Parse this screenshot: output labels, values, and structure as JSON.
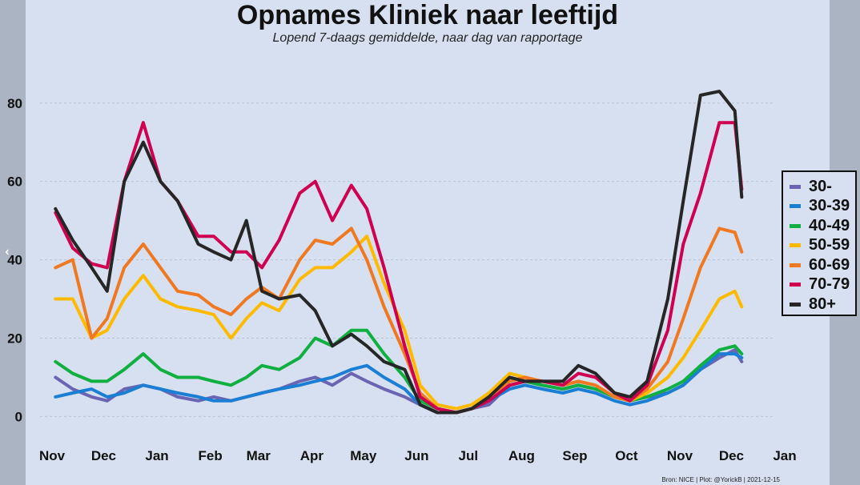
{
  "chart_data": {
    "type": "line",
    "title": "Opnames Kliniek naar leeftijd",
    "subtitle": "Lopend 7-daags gemiddelde, naar dag van rapportage",
    "source": "Bron: NICE | Plot: @YorickB  |  2021-12-15",
    "xlabel": "",
    "ylabel": "",
    "ylim": [
      -4,
      92
    ],
    "yticks": [
      0,
      20,
      40,
      60,
      80
    ],
    "xticks": [
      "Nov",
      "Dec",
      "Jan",
      "Feb",
      "Mar",
      "Apr",
      "May",
      "Jun",
      "Jul",
      "Aug",
      "Sep",
      "Oct",
      "Nov",
      "Dec",
      "Jan"
    ],
    "grid": true,
    "legend_position": "right",
    "x": [
      "2020-11-10",
      "2020-11-20",
      "2020-12-01",
      "2020-12-10",
      "2020-12-20",
      "2020-12-31",
      "2021-01-10",
      "2021-01-20",
      "2021-02-01",
      "2021-02-10",
      "2021-02-20",
      "2021-03-01",
      "2021-03-10",
      "2021-03-20",
      "2021-04-01",
      "2021-04-10",
      "2021-04-20",
      "2021-05-01",
      "2021-05-10",
      "2021-05-20",
      "2021-06-01",
      "2021-06-10",
      "2021-06-20",
      "2021-07-01",
      "2021-07-10",
      "2021-07-20",
      "2021-08-01",
      "2021-08-10",
      "2021-08-20",
      "2021-09-01",
      "2021-09-10",
      "2021-09-20",
      "2021-10-01",
      "2021-10-10",
      "2021-10-20",
      "2021-11-01",
      "2021-11-10",
      "2021-11-20",
      "2021-12-01",
      "2021-12-10",
      "2021-12-14"
    ],
    "series": [
      {
        "name": "30-",
        "color": "#6b64b3",
        "values": [
          10,
          7,
          5,
          4,
          7,
          8,
          7,
          5,
          4,
          5,
          4,
          5,
          6,
          7,
          9,
          10,
          8,
          11,
          9,
          7,
          5,
          3,
          1,
          1,
          2,
          3,
          8,
          9,
          8,
          7,
          8,
          7,
          5,
          4,
          5,
          6,
          8,
          12,
          15,
          17,
          14
        ]
      },
      {
        "name": "30-39",
        "color": "#1a7fd4",
        "values": [
          5,
          6,
          7,
          5,
          6,
          8,
          7,
          6,
          5,
          4,
          4,
          5,
          6,
          7,
          8,
          9,
          10,
          12,
          13,
          10,
          7,
          3,
          1,
          1,
          2,
          4,
          7,
          8,
          7,
          6,
          7,
          6,
          4,
          3,
          4,
          6,
          8,
          12,
          16,
          16,
          15
        ]
      },
      {
        "name": "40-49",
        "color": "#10b040",
        "values": [
          14,
          11,
          9,
          9,
          12,
          16,
          12,
          10,
          10,
          9,
          8,
          10,
          13,
          12,
          15,
          20,
          18,
          22,
          22,
          16,
          10,
          4,
          2,
          1,
          2,
          4,
          8,
          9,
          8,
          7,
          8,
          7,
          5,
          4,
          5,
          7,
          9,
          13,
          17,
          18,
          16
        ]
      },
      {
        "name": "50-59",
        "color": "#ffba00",
        "values": [
          30,
          30,
          20,
          22,
          30,
          36,
          30,
          28,
          27,
          26,
          20,
          25,
          29,
          27,
          35,
          38,
          38,
          42,
          46,
          34,
          22,
          8,
          3,
          2,
          3,
          6,
          11,
          10,
          9,
          8,
          9,
          8,
          5,
          4,
          6,
          10,
          15,
          22,
          30,
          32,
          28
        ]
      },
      {
        "name": "60-69",
        "color": "#f07820",
        "values": [
          38,
          40,
          20,
          25,
          38,
          44,
          38,
          32,
          31,
          28,
          26,
          30,
          33,
          30,
          40,
          45,
          44,
          48,
          40,
          28,
          16,
          6,
          2,
          1,
          2,
          5,
          9,
          10,
          9,
          8,
          9,
          8,
          5,
          4,
          7,
          14,
          25,
          38,
          48,
          47,
          42
        ]
      },
      {
        "name": "70-79",
        "color": "#d00050",
        "values": [
          52,
          43,
          39,
          38,
          60,
          75,
          60,
          55,
          46,
          46,
          42,
          42,
          38,
          45,
          57,
          60,
          50,
          59,
          53,
          38,
          18,
          5,
          2,
          1,
          2,
          4,
          8,
          9,
          9,
          8,
          11,
          10,
          6,
          4,
          8,
          22,
          44,
          57,
          75,
          75,
          58
        ]
      },
      {
        "name": "80+",
        "color": "#262626",
        "values": [
          53,
          45,
          38,
          32,
          60,
          70,
          60,
          55,
          44,
          42,
          40,
          50,
          32,
          30,
          31,
          27,
          18,
          21,
          18,
          14,
          12,
          3,
          1,
          1,
          2,
          5,
          10,
          9,
          9,
          9,
          13,
          11,
          6,
          5,
          9,
          30,
          55,
          82,
          83,
          78,
          56
        ]
      }
    ]
  }
}
